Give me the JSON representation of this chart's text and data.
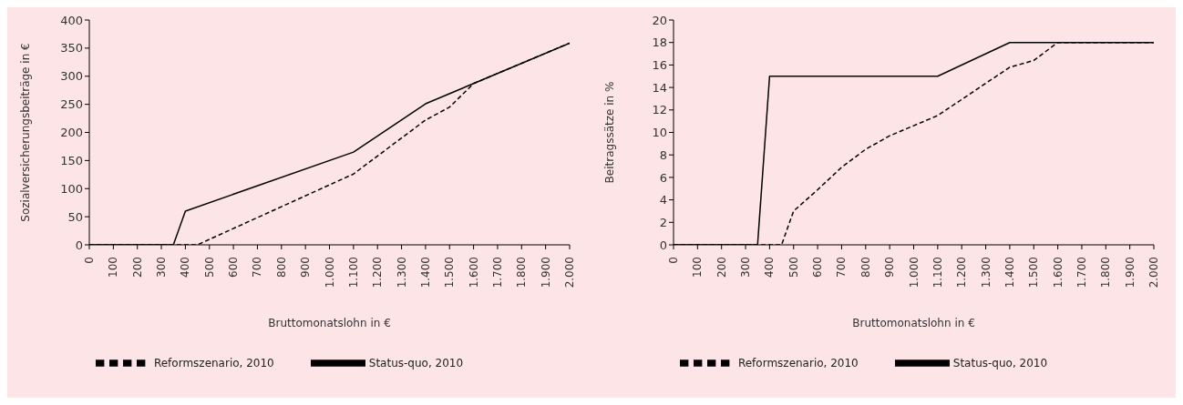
{
  "chart_data": [
    {
      "type": "line",
      "xlabel": "Bruttomonatslohn in €",
      "ylabel": "Sozialversicherungsbeiträge in €",
      "xlim": [
        0,
        2000
      ],
      "xticks": [
        0,
        100,
        200,
        300,
        400,
        500,
        600,
        700,
        800,
        900,
        {
          "value": 1000,
          "label": "1.000"
        },
        {
          "value": 1100,
          "label": "1.100"
        },
        {
          "value": 1200,
          "label": "1.200"
        },
        {
          "value": 1300,
          "label": "1.300"
        },
        {
          "value": 1400,
          "label": "1.400"
        },
        {
          "value": 1500,
          "label": "1.500"
        },
        {
          "value": 1600,
          "label": "1.600"
        },
        {
          "value": 1700,
          "label": "1.700"
        },
        {
          "value": 1800,
          "label": "1.800"
        },
        {
          "value": 1900,
          "label": "1.900"
        },
        {
          "value": 2000,
          "label": "2.000"
        }
      ],
      "ylim": [
        0,
        400
      ],
      "yticks": [
        0,
        50,
        100,
        150,
        200,
        250,
        300,
        350,
        400
      ],
      "grid": false,
      "legend": "bottom",
      "marker": "none",
      "series": [
        {
          "name": "Status-quo, 2010",
          "color": "#000000",
          "line_style": "solid",
          "x": [
            0,
            350,
            400,
            1100,
            1400,
            1600,
            2000
          ],
          "values": [
            0,
            0,
            60,
            165,
            251,
            287,
            359
          ]
        },
        {
          "name": "Reformszenario, 2010",
          "color": "#000000",
          "line_style": "dashed",
          "x": [
            0,
            450,
            1100,
            1400,
            1500,
            1600,
            2000
          ],
          "values": [
            0,
            0,
            126,
            222,
            245,
            287,
            359
          ]
        }
      ]
    },
    {
      "type": "line",
      "xlabel": "Bruttomonatslohn in €",
      "ylabel": "Beitragssätze in %",
      "xlim": [
        0,
        2000
      ],
      "xticks": [
        0,
        100,
        200,
        300,
        400,
        500,
        600,
        700,
        800,
        900,
        {
          "value": 1000,
          "label": "1.000"
        },
        {
          "value": 1100,
          "label": "1.100"
        },
        {
          "value": 1200,
          "label": "1.200"
        },
        {
          "value": 1300,
          "label": "1.300"
        },
        {
          "value": 1400,
          "label": "1.400"
        },
        {
          "value": 1500,
          "label": "1.500"
        },
        {
          "value": 1600,
          "label": "1.600"
        },
        {
          "value": 1700,
          "label": "1.700"
        },
        {
          "value": 1800,
          "label": "1.800"
        },
        {
          "value": 1900,
          "label": "1.900"
        },
        {
          "value": 2000,
          "label": "2.000"
        }
      ],
      "ylim": [
        0,
        20
      ],
      "yticks": [
        0,
        2,
        4,
        6,
        8,
        10,
        12,
        14,
        16,
        18,
        20
      ],
      "grid": false,
      "legend": "bottom",
      "marker": "none",
      "series": [
        {
          "name": "Status-quo, 2010",
          "color": "#000000",
          "line_style": "solid",
          "x": [
            0,
            350,
            400,
            1100,
            1400,
            2000
          ],
          "values": [
            0,
            0,
            15,
            15,
            18,
            18
          ]
        },
        {
          "name": "Reformszenario, 2010",
          "color": "#000000",
          "line_style": "dashed",
          "x": [
            0,
            450,
            500,
            600,
            700,
            800,
            900,
            1000,
            1100,
            1400,
            1500,
            1600,
            2000
          ],
          "values": [
            0,
            0,
            3,
            4.9,
            6.9,
            8.5,
            9.7,
            10.6,
            11.5,
            15.8,
            16.4,
            18,
            18
          ]
        }
      ]
    }
  ]
}
